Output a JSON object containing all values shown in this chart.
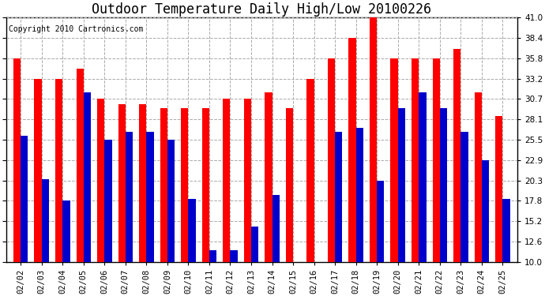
{
  "title": "Outdoor Temperature Daily High/Low 20100226",
  "copyright": "Copyright 2010 Cartronics.com",
  "dates": [
    "02/02",
    "02/03",
    "02/04",
    "02/05",
    "02/06",
    "02/07",
    "02/08",
    "02/09",
    "02/10",
    "02/11",
    "02/12",
    "02/13",
    "02/14",
    "02/15",
    "02/16",
    "02/17",
    "02/18",
    "02/19",
    "02/20",
    "02/21",
    "02/22",
    "02/23",
    "02/24",
    "02/25"
  ],
  "highs": [
    35.8,
    33.2,
    33.2,
    34.5,
    30.7,
    30.0,
    30.0,
    29.5,
    29.5,
    29.5,
    30.7,
    30.7,
    31.5,
    29.5,
    33.2,
    35.8,
    38.4,
    41.0,
    35.8,
    35.8,
    35.8,
    37.0,
    31.5,
    28.5
  ],
  "lows": [
    26.0,
    20.5,
    17.8,
    31.5,
    25.5,
    26.5,
    26.5,
    25.5,
    18.0,
    11.5,
    11.5,
    14.5,
    18.5,
    10.0,
    10.0,
    26.5,
    27.0,
    20.3,
    29.5,
    31.5,
    29.5,
    26.5,
    22.9,
    18.0
  ],
  "high_color": "#ff0000",
  "low_color": "#0000cc",
  "background_color": "#ffffff",
  "plot_bg_color": "#ffffff",
  "grid_color": "#aaaaaa",
  "ymin": 10.0,
  "ymax": 41.0,
  "yticks": [
    10.0,
    12.6,
    15.2,
    17.8,
    20.3,
    22.9,
    25.5,
    28.1,
    30.7,
    33.2,
    35.8,
    38.4,
    41.0
  ],
  "title_fontsize": 12,
  "copyright_fontsize": 7,
  "tick_fontsize": 7.5,
  "bar_width": 0.35
}
